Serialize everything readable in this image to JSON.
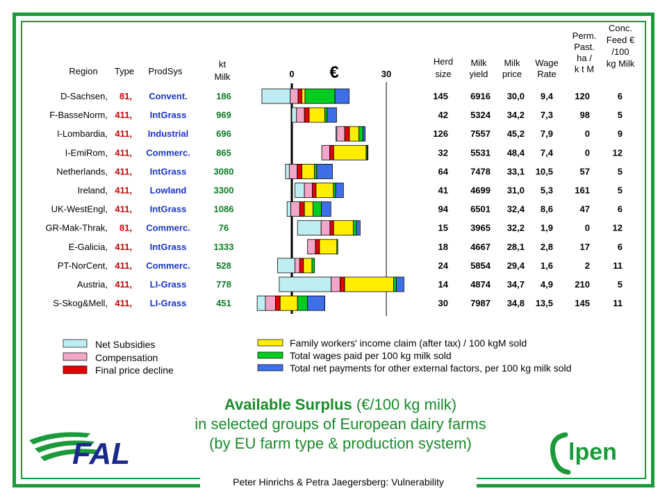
{
  "footer": "Peter Hinrichs & Petra Jaegersberg: Vulnerability",
  "title": {
    "bold": "Available Surplus",
    "rest": " (€/100 kg milk)",
    "line2": "in selected groups of European dairy farms",
    "line3": "(by EU farm type & production system)"
  },
  "logos": {
    "fal": "FAL",
    "elpen": "lpen"
  },
  "headers": {
    "region": "Region",
    "type": "Type",
    "prodsys": "ProdSys",
    "kt_milk_1": "kt",
    "kt_milk_2": "Milk",
    "herd_1": "Herd",
    "herd_2": "size",
    "yield_1": "Milk",
    "yield_2": "yield",
    "price_1": "Milk",
    "price_2": "price",
    "wage_1": "Wage",
    "wage_2": "Rate",
    "perm_1": "Perm.",
    "perm_2": "Past.",
    "perm_3": "ha /",
    "perm_4": "k t M",
    "conc_1": "Conc.",
    "conc_2": "Feed €",
    "conc_3": "/100",
    "conc_4": "kg Milk"
  },
  "chart_data": {
    "type": "bar",
    "orientation": "horizontal",
    "stacked": true,
    "unit": "€",
    "xticks": [
      0,
      30
    ],
    "segment_order": [
      "net_subsidies",
      "compensation",
      "final_price_decline",
      "family_workers",
      "wages",
      "other_external"
    ],
    "series_colors": {
      "net_subsidies": "#bfeef2",
      "compensation": "#f4a6c8",
      "final_price_decline": "#e00000",
      "family_workers": "#ffee00",
      "wages": "#00cc22",
      "other_external": "#3f6fe8"
    },
    "legend": [
      {
        "key": "net_subsidies",
        "label": "Net Subsidies"
      },
      {
        "key": "compensation",
        "label": "Compensation"
      },
      {
        "key": "final_price_decline",
        "label": "Final price decline"
      },
      {
        "key": "family_workers",
        "label": "Family workers' income claim (after tax) / 100 kgM sold"
      },
      {
        "key": "wages",
        "label": "Total wages paid per 100 kg  milk sold"
      },
      {
        "key": "other_external",
        "label": "Total net payments for other external factors, per 100 kg milk sold"
      }
    ],
    "rows": [
      {
        "region": "D-Sachsen,",
        "type": "81,",
        "prodsys": "Convent.",
        "kt_milk": "186",
        "herd": "145",
        "yield": "6916",
        "price": "30,0",
        "wage": "9,4",
        "perm": "120",
        "conc": "6",
        "start": -9.5,
        "segments": [
          9.0,
          2.5,
          1.2,
          1.0,
          9.5,
          4.5
        ]
      },
      {
        "region": "F-BasseNorm,",
        "type": "411,",
        "prodsys": "IntGrass",
        "kt_milk": "969",
        "herd": "42",
        "yield": "5324",
        "price": "34,2",
        "wage": "7,3",
        "perm": "98",
        "conc": "5",
        "start": 0.0,
        "segments": [
          1.5,
          2.5,
          1.5,
          5.0,
          0.7,
          3.0
        ]
      },
      {
        "region": "I-Lombardia,",
        "type": "411,",
        "prodsys": "Industrial",
        "kt_milk": "696",
        "herd": "126",
        "yield": "7557",
        "price": "45,2",
        "wage": "7,9",
        "perm": "0",
        "conc": "9",
        "start": 14.0,
        "segments": [
          0.3,
          2.5,
          1.5,
          3.0,
          1.3,
          0.7
        ]
      },
      {
        "region": "I-EmiRom,",
        "type": "411,",
        "prodsys": "Commerc.",
        "kt_milk": "865",
        "herd": "32",
        "yield": "5531",
        "price": "48,4",
        "wage": "7,4",
        "perm": "0",
        "conc": "12",
        "start": 9.5,
        "segments": [
          0.0,
          2.5,
          1.3,
          10.3,
          0.3,
          0.3
        ]
      },
      {
        "region": "Netherlands,",
        "type": "411,",
        "prodsys": "IntGrass",
        "kt_milk": "3080",
        "herd": "64",
        "yield": "7478",
        "price": "33,1",
        "wage": "10,5",
        "perm": "57",
        "conc": "5",
        "start": -2.0,
        "segments": [
          1.2,
          2.5,
          1.5,
          4.0,
          0.7,
          5.0
        ]
      },
      {
        "region": "Ireland,",
        "type": "411,",
        "prodsys": "Lowland",
        "kt_milk": "3300",
        "herd": "41",
        "yield": "4699",
        "price": "31,0",
        "wage": "5,3",
        "perm": "161",
        "conc": "5",
        "start": 1.0,
        "segments": [
          3.0,
          2.5,
          1.2,
          5.5,
          0.7,
          2.5
        ]
      },
      {
        "region": "UK-WestEngl,",
        "type": "411,",
        "prodsys": "IntGrass",
        "kt_milk": "1086",
        "herd": "94",
        "yield": "6501",
        "price": "32,4",
        "wage": "8,6",
        "perm": "47",
        "conc": "6",
        "start": -1.5,
        "segments": [
          1.2,
          2.8,
          1.5,
          2.7,
          2.7,
          3.0
        ]
      },
      {
        "region": "GR-Mak-Thrak,",
        "type": "81,",
        "prodsys": "Commerc.",
        "kt_milk": "76",
        "herd": "15",
        "yield": "3965",
        "price": "32,2",
        "wage": "1,9",
        "perm": "0",
        "conc": "12",
        "start": 1.8,
        "segments": [
          7.5,
          2.8,
          1.2,
          6.2,
          1.0,
          1.2
        ]
      },
      {
        "region": "E-Galicia,",
        "type": "411,",
        "prodsys": "IntGrass",
        "kt_milk": "1333",
        "herd": "18",
        "yield": "4667",
        "price": "28,1",
        "wage": "2,8",
        "perm": "17",
        "conc": "6",
        "start": 5.0,
        "segments": [
          0.0,
          2.5,
          1.3,
          5.5,
          0.3,
          0.0
        ]
      },
      {
        "region": "PT-NorCent,",
        "type": "411,",
        "prodsys": "Commerc.",
        "kt_milk": "528",
        "herd": "24",
        "yield": "5854",
        "price": "29,4",
        "wage": "1,6",
        "perm": "2",
        "conc": "11",
        "start": -4.5,
        "segments": [
          5.5,
          1.5,
          1.2,
          2.7,
          0.8,
          0.0
        ]
      },
      {
        "region": "Austria,",
        "type": "411,",
        "prodsys": "LI-Grass",
        "kt_milk": "778",
        "herd": "14",
        "yield": "4874",
        "price": "34,7",
        "wage": "4,9",
        "perm": "210",
        "conc": "5",
        "start": -4.0,
        "segments": [
          16.5,
          2.8,
          1.5,
          15.5,
          0.9,
          2.4
        ]
      },
      {
        "region": "S-Skog&Mell,",
        "type": "411,",
        "prodsys": "LI-Grass",
        "kt_milk": "451",
        "herd": "30",
        "yield": "7987",
        "price": "34,8",
        "wage": "13,5",
        "perm": "145",
        "conc": "11",
        "start": -11.0,
        "segments": [
          2.6,
          3.2,
          1.5,
          5.5,
          3.2,
          5.5
        ]
      }
    ]
  }
}
